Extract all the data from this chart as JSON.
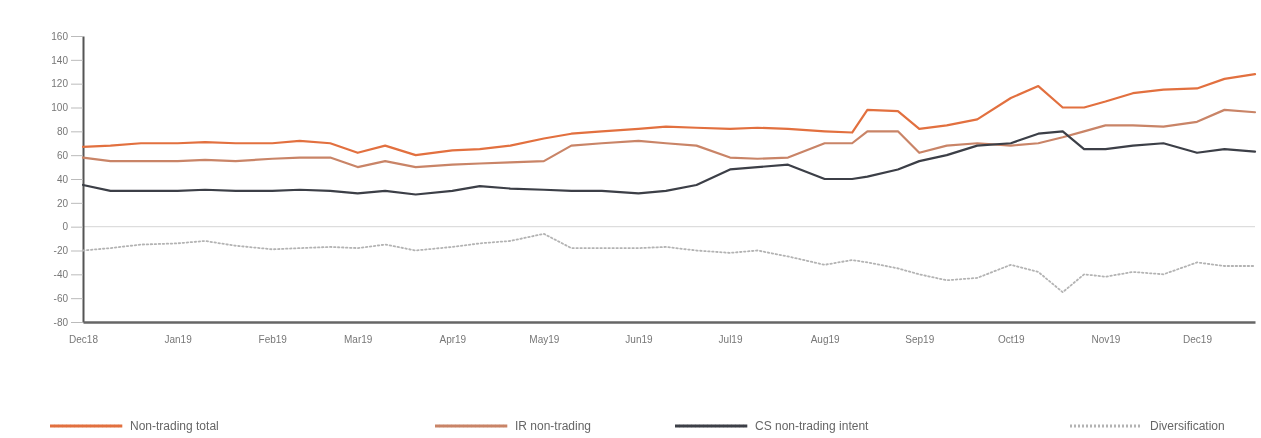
{
  "chart_data": {
    "type": "line",
    "x": [
      "2018-12-01",
      "2018-12-10",
      "2018-12-20",
      "2019-01-01",
      "2019-01-10",
      "2019-01-20",
      "2019-02-01",
      "2019-02-10",
      "2019-02-20",
      "2019-03-01",
      "2019-03-10",
      "2019-03-20",
      "2019-04-01",
      "2019-04-10",
      "2019-04-20",
      "2019-05-01",
      "2019-05-10",
      "2019-05-20",
      "2019-06-01",
      "2019-06-10",
      "2019-06-20",
      "2019-07-01",
      "2019-07-10",
      "2019-07-20",
      "2019-08-01",
      "2019-08-10",
      "2019-08-15",
      "2019-08-25",
      "2019-09-01",
      "2019-09-10",
      "2019-09-20",
      "2019-10-01",
      "2019-10-10",
      "2019-10-18",
      "2019-10-25",
      "2019-11-01",
      "2019-11-10",
      "2019-11-20",
      "2019-12-01",
      "2019-12-10",
      "2019-12-20"
    ],
    "series": [
      {
        "name": "Non-trading total",
        "color": "#e2703f",
        "values": [
          67,
          68,
          70,
          70,
          71,
          70,
          70,
          72,
          70,
          62,
          68,
          60,
          64,
          65,
          68,
          74,
          78,
          80,
          82,
          84,
          83,
          82,
          83,
          82,
          80,
          79,
          98,
          97,
          82,
          85,
          90,
          108,
          118,
          100,
          100,
          105,
          112,
          115,
          116,
          124,
          128
        ]
      },
      {
        "name": "IR non-trading",
        "color": "#c98467",
        "values": [
          58,
          55,
          55,
          55,
          56,
          55,
          57,
          58,
          58,
          50,
          55,
          50,
          52,
          53,
          54,
          55,
          68,
          70,
          72,
          70,
          68,
          58,
          57,
          58,
          70,
          70,
          80,
          80,
          62,
          68,
          70,
          68,
          70,
          75,
          80,
          85,
          85,
          84,
          88,
          98,
          96
        ]
      },
      {
        "name": "CS non-trading intent",
        "color": "#3c3f47",
        "values": [
          35,
          30,
          30,
          30,
          31,
          30,
          30,
          31,
          30,
          28,
          30,
          27,
          30,
          34,
          32,
          31,
          30,
          30,
          28,
          30,
          35,
          48,
          50,
          52,
          40,
          40,
          42,
          48,
          55,
          60,
          68,
          70,
          78,
          80,
          65,
          65,
          68,
          70,
          62,
          65,
          63
        ]
      },
      {
        "name": "Diversification",
        "color": "#b3b3b3",
        "line_style": "dotted",
        "values": [
          -20,
          -18,
          -15,
          -14,
          -12,
          -16,
          -19,
          -18,
          -17,
          -18,
          -15,
          -20,
          -17,
          -14,
          -12,
          -6,
          -18,
          -18,
          -18,
          -17,
          -20,
          -22,
          -20,
          -25,
          -32,
          -28,
          -30,
          -35,
          -40,
          -45,
          -43,
          -32,
          -38,
          -55,
          -40,
          -42,
          -38,
          -40,
          -30,
          -33,
          -33
        ]
      }
    ],
    "xlim": [
      "2018-12-01",
      "2019-12-20"
    ],
    "xticks": [
      {
        "value": "2018-12-01",
        "label": "Dec18"
      },
      {
        "value": "2019-01-01",
        "label": "Jan19"
      },
      {
        "value": "2019-02-01",
        "label": "Feb19"
      },
      {
        "value": "2019-03-01",
        "label": "Mar19"
      },
      {
        "value": "2019-04-01",
        "label": "Apr19"
      },
      {
        "value": "2019-05-01",
        "label": "May19"
      },
      {
        "value": "2019-06-01",
        "label": "Jun19"
      },
      {
        "value": "2019-07-01",
        "label": "Jul19"
      },
      {
        "value": "2019-08-01",
        "label": "Aug19"
      },
      {
        "value": "2019-09-01",
        "label": "Sep19"
      },
      {
        "value": "2019-10-01",
        "label": "Oct19"
      },
      {
        "value": "2019-11-01",
        "label": "Nov19"
      },
      {
        "value": "2019-12-01",
        "label": "Dec19"
      }
    ],
    "ylim": [
      -80,
      160
    ],
    "yticks": [
      -80,
      -60,
      -40,
      -20,
      0,
      20,
      40,
      60,
      80,
      100,
      120,
      140,
      160
    ],
    "ref_lines": [
      {
        "axis": "y",
        "value": 0,
        "color": "#dddddd"
      }
    ],
    "grid": false,
    "legend": "bottom",
    "line_style": "solid",
    "marker": "none"
  }
}
